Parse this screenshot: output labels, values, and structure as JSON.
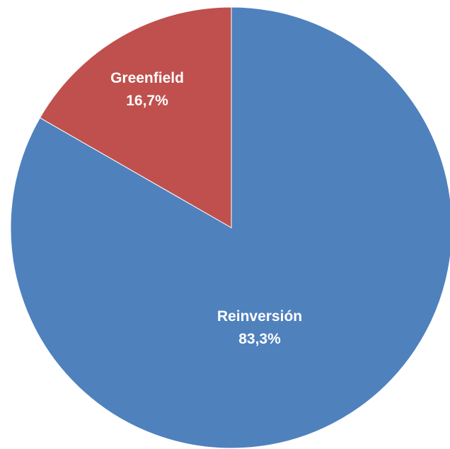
{
  "chart_data": {
    "type": "pie",
    "title": "",
    "slices": [
      {
        "label": "Reinversión",
        "value": 83.3,
        "value_label": "83,3%",
        "color": "#4F81BD"
      },
      {
        "label": "Greenfield",
        "value": 16.7,
        "value_label": "16,7%",
        "color": "#C0504D"
      }
    ],
    "start_angle_deg": 0,
    "direction": "clockwise",
    "legend": "none",
    "label_style": "inside"
  }
}
